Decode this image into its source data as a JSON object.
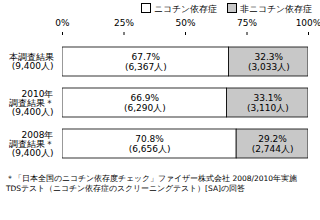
{
  "chart_data": {
    "type": "bar",
    "orientation": "horizontal",
    "stacked": true,
    "data_labels": true,
    "legend": "top",
    "grid": false,
    "categories": [
      "本調査結果\n(9,400人)",
      "2010年\n調査結果＊\n(9,400人)",
      "2008年\n調査結果＊\n(9,400人)"
    ],
    "series": [
      {
        "name": "ニコチン依存症",
        "color": "#ffffff",
        "values": [
          67.7,
          66.9,
          70.8
        ],
        "value_labels": [
          "67.7%\n(6,367人)",
          "66.9%\n(6,290人)",
          "70.8%\n(6,656人)"
        ]
      },
      {
        "name": "非ニコチン依存症",
        "color": "#c8c8c8",
        "values": [
          32.3,
          33.1,
          29.2
        ],
        "value_labels": [
          "32.3%\n(3,033人)",
          "33.1%\n(3,110人)",
          "29.2%\n(2,744人)"
        ]
      }
    ],
    "xlim": [
      0,
      100
    ],
    "xticks": [
      {
        "value": 0,
        "label": "0%"
      },
      {
        "value": 25,
        "label": "25%"
      },
      {
        "value": 50,
        "label": "50%"
      },
      {
        "value": 75,
        "label": "75%"
      },
      {
        "value": 100,
        "label": "100%"
      }
    ],
    "caption": "＊「日本全国のニコチン依存度チェック」ファイザー株式会社 2008/2010年実施\nTDSテスト（ニコチン依存症のスクリーニングテスト）[SA]の回答"
  }
}
